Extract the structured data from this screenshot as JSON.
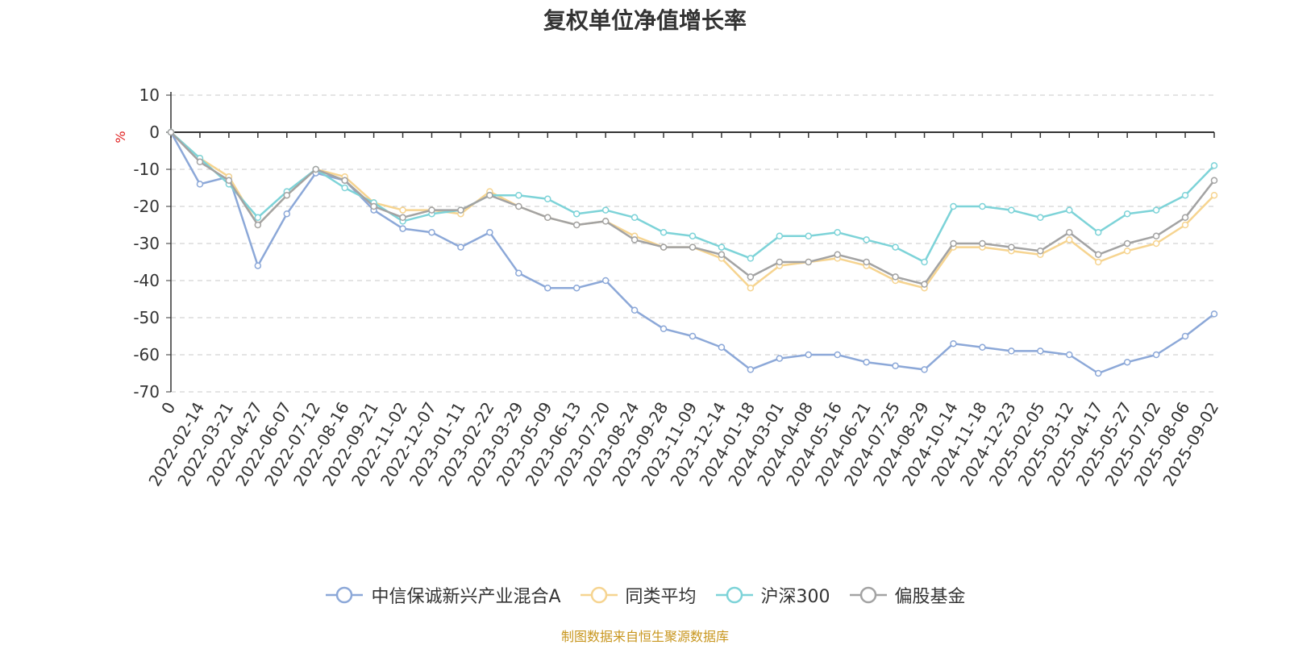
{
  "chart_data": {
    "type": "line",
    "title": "复权单位净值增长率",
    "ylabel": "%",
    "ylim": [
      -70,
      10
    ],
    "yticks": [
      10,
      0,
      -10,
      -20,
      -30,
      -40,
      -50,
      -60,
      -70
    ],
    "grid": true,
    "legend_position": "bottom",
    "categories": [
      "0",
      "2022-02-14",
      "2022-03-21",
      "2022-04-27",
      "2022-06-07",
      "2022-07-12",
      "2022-08-16",
      "2022-09-21",
      "2022-11-02",
      "2022-12-07",
      "2023-01-11",
      "2023-02-22",
      "2023-03-29",
      "2023-05-09",
      "2023-06-13",
      "2023-07-20",
      "2023-08-24",
      "2023-09-28",
      "2023-11-09",
      "2023-12-14",
      "2024-01-18",
      "2024-03-01",
      "2024-04-08",
      "2024-05-16",
      "2024-06-21",
      "2024-07-25",
      "2024-08-29",
      "2024-10-14",
      "2024-11-18",
      "2024-12-23",
      "2025-02-05",
      "2025-03-12",
      "2025-04-17",
      "2025-05-27",
      "2025-07-02",
      "2025-08-06",
      "2025-09-02"
    ],
    "series": [
      {
        "name": "中信保诚新兴产业混合A",
        "color": "#8ca8d8",
        "values": [
          0,
          -14,
          -12,
          -36,
          -22,
          -11,
          -13,
          -21,
          -26,
          -27,
          -31,
          -27,
          -38,
          -42,
          -42,
          -40,
          -48,
          -53,
          -55,
          -58,
          -64,
          -61,
          -60,
          -60,
          -62,
          -63,
          -64,
          -57,
          -58,
          -59,
          -59,
          -60,
          -65,
          -62,
          -60,
          -55,
          -49
        ]
      },
      {
        "name": "同类平均",
        "color": "#f6d490",
        "values": [
          0,
          -7,
          -12,
          -25,
          -17,
          -10,
          -12,
          -19,
          -21,
          -21,
          -22,
          -16,
          -20,
          -23,
          -25,
          -24,
          -28,
          -31,
          -31,
          -34,
          -42,
          -36,
          -35,
          -34,
          -36,
          -40,
          -42,
          -31,
          -31,
          -32,
          -33,
          -29,
          -35,
          -32,
          -30,
          -25,
          -17
        ]
      },
      {
        "name": "沪深300",
        "color": "#7dd3d8",
        "values": [
          0,
          -7,
          -14,
          -23,
          -16,
          -10,
          -15,
          -19,
          -24,
          -22,
          -21,
          -17,
          -17,
          -18,
          -22,
          -21,
          -23,
          -27,
          -28,
          -31,
          -34,
          -28,
          -28,
          -27,
          -29,
          -31,
          -35,
          -20,
          -20,
          -21,
          -23,
          -21,
          -27,
          -22,
          -21,
          -17,
          -9
        ]
      },
      {
        "name": "偏股基金",
        "color": "#a3a3a3",
        "values": [
          0,
          -8,
          -13,
          -25,
          -17,
          -10,
          -13,
          -20,
          -23,
          -21,
          -21,
          -17,
          -20,
          -23,
          -25,
          -24,
          -29,
          -31,
          -31,
          -33,
          -39,
          -35,
          -35,
          -33,
          -35,
          -39,
          -41,
          -30,
          -30,
          -31,
          -32,
          -27,
          -33,
          -30,
          -28,
          -23,
          -13
        ]
      }
    ]
  },
  "footer": {
    "source": "制图数据来自恒生聚源数据库"
  }
}
